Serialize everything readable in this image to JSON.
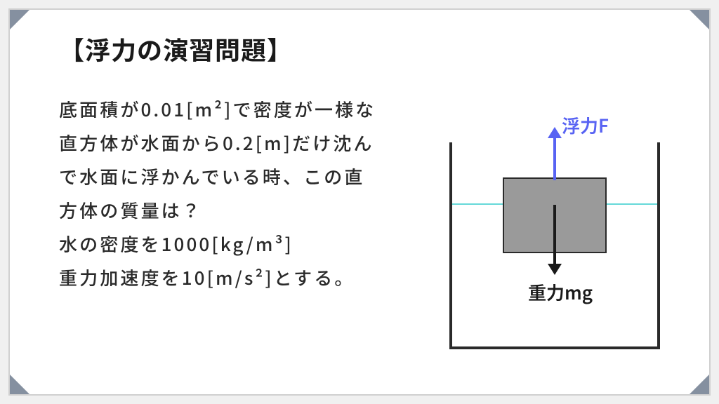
{
  "title": "【浮力の演習問題】",
  "problem": {
    "line1": "底面積が0.01[m²]で密度が一様な",
    "line2": "直方体が水面から0.2[m]だけ沈ん",
    "line3": "で水面に浮かんでいる時、この直",
    "line4": "方体の質量は？",
    "line5": "水の密度を1000[kg/m³]",
    "line6": "重力加速度を10[m/s²]とする。"
  },
  "diagram": {
    "buoyancy_label": "浮力F",
    "gravity_label": "重力mg",
    "buoyancy_color": "#5863f3",
    "water_color": "#66d9d9",
    "block_color": "#9a9a9a",
    "line_color": "#2a2a2a"
  }
}
